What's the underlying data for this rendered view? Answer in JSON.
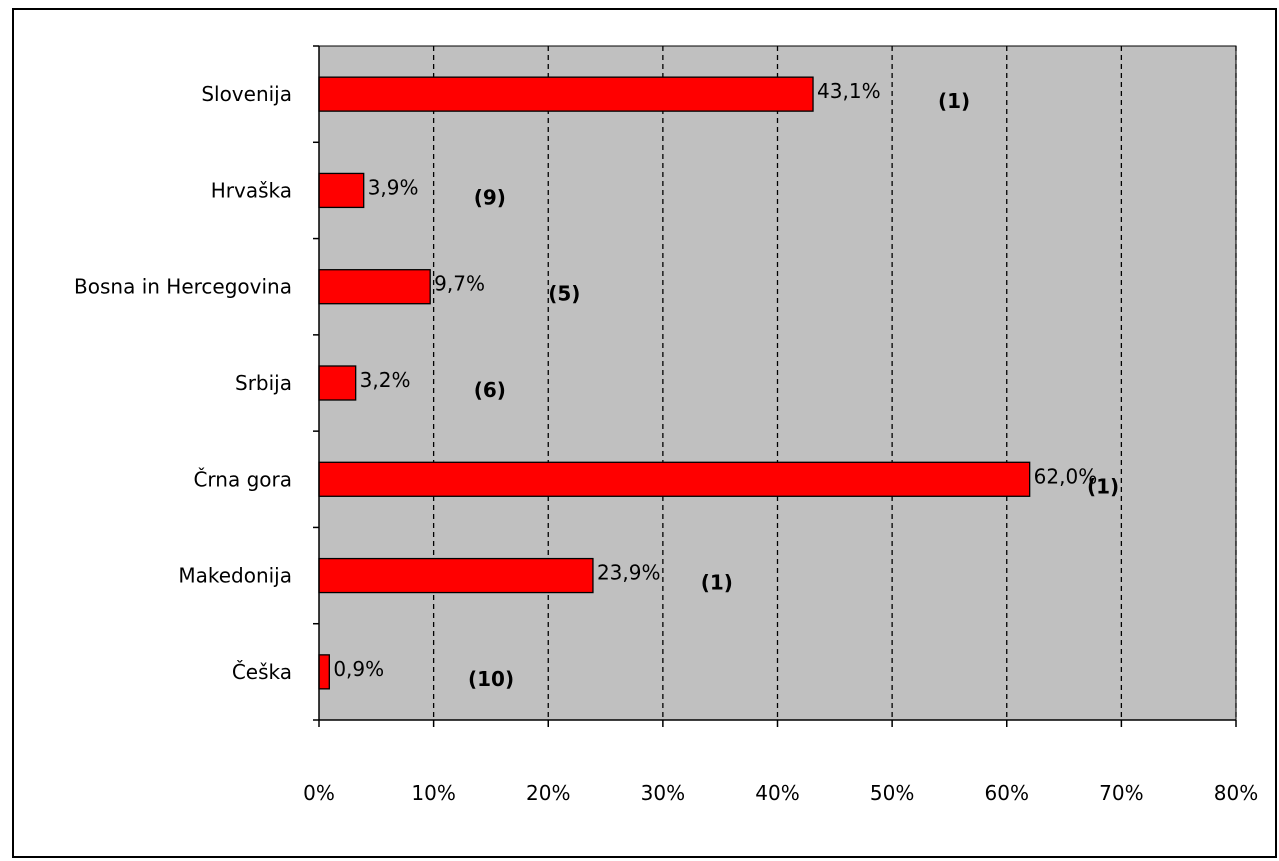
{
  "chart_data": {
    "type": "bar",
    "orientation": "horizontal",
    "categories": [
      "Slovenija",
      "Hrvaška",
      "Bosna in Hercegovina",
      "Srbija",
      "Črna gora",
      "Makedonija",
      "Češka"
    ],
    "values": [
      43.1,
      3.9,
      9.7,
      3.2,
      62.0,
      23.9,
      0.9
    ],
    "value_labels": [
      "43,1%",
      "3,9%",
      "9,7%",
      "3,2%",
      "62,0%",
      "23,9%",
      "0,9%"
    ],
    "rank_labels": [
      "(1)",
      "(9)",
      "(5)",
      "(6)",
      "(1)",
      "(1)",
      "(10)"
    ],
    "xlim": [
      0,
      80
    ],
    "x_ticks": [
      0,
      10,
      20,
      30,
      40,
      50,
      60,
      70,
      80
    ],
    "x_tick_labels": [
      "0%",
      "10%",
      "20%",
      "30%",
      "40%",
      "50%",
      "60%",
      "70%",
      "80%"
    ],
    "grid": "vertical dashed",
    "colors": {
      "bar": "#ff0000",
      "plot_background": "#c0c0c0"
    }
  }
}
